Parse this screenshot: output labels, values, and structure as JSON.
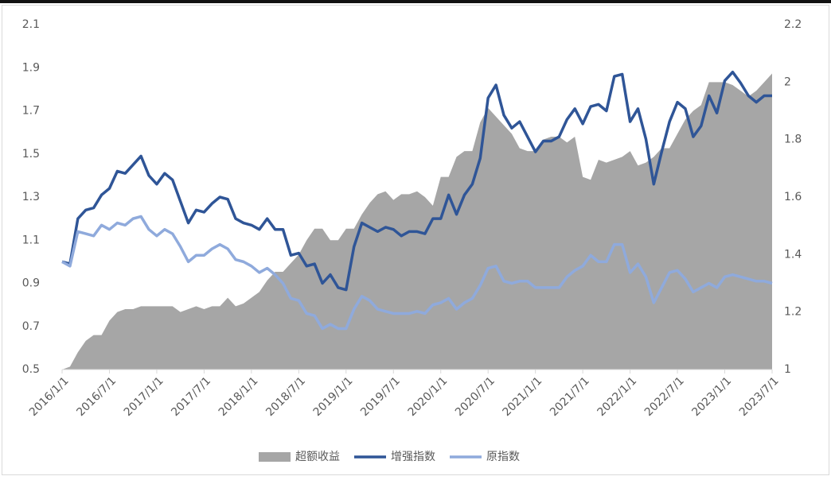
{
  "chart_data": {
    "type": "line",
    "categories": [
      "2016/1/1",
      null,
      null,
      null,
      null,
      null,
      "2016/7/1",
      null,
      null,
      null,
      null,
      null,
      "2017/1/1",
      null,
      null,
      null,
      null,
      null,
      "2017/7/1",
      null,
      null,
      null,
      null,
      null,
      "2018/1/1",
      null,
      null,
      null,
      null,
      null,
      "2018/7/1",
      null,
      null,
      null,
      null,
      null,
      "2019/1/1",
      null,
      null,
      null,
      null,
      null,
      "2019/7/1",
      null,
      null,
      null,
      null,
      null,
      "2020/1/1",
      null,
      null,
      null,
      null,
      null,
      "2020/7/1",
      null,
      null,
      null,
      null,
      null,
      "2021/1/1",
      null,
      null,
      null,
      null,
      null,
      "2021/7/1",
      null,
      null,
      null,
      null,
      null,
      "2022/1/1",
      null,
      null,
      null,
      null,
      null,
      "2022/7/1",
      null,
      null,
      null,
      null,
      null,
      "2023/1/1",
      null,
      null,
      null,
      null,
      null,
      "2023/7/1"
    ],
    "series": [
      {
        "name": "超额收益",
        "type": "area",
        "axis": "y2",
        "color": "#a6a6a6",
        "values": [
          1.0,
          1.01,
          1.06,
          1.1,
          1.12,
          1.12,
          1.17,
          1.2,
          1.21,
          1.21,
          1.22,
          1.22,
          1.22,
          1.22,
          1.22,
          1.2,
          1.21,
          1.22,
          1.21,
          1.22,
          1.22,
          1.25,
          1.22,
          1.23,
          1.25,
          1.27,
          1.31,
          1.34,
          1.34,
          1.37,
          1.4,
          1.45,
          1.49,
          1.49,
          1.45,
          1.45,
          1.49,
          1.49,
          1.54,
          1.58,
          1.61,
          1.62,
          1.59,
          1.61,
          1.61,
          1.62,
          1.6,
          1.57,
          1.67,
          1.67,
          1.74,
          1.76,
          1.76,
          1.86,
          1.91,
          1.88,
          1.85,
          1.82,
          1.77,
          1.76,
          1.76,
          1.8,
          1.81,
          1.81,
          1.79,
          1.81,
          1.67,
          1.66,
          1.73,
          1.72,
          1.73,
          1.74,
          1.76,
          1.71,
          1.72,
          1.74,
          1.77,
          1.77,
          1.82,
          1.87,
          1.9,
          1.92,
          2.0,
          2.0,
          2.0,
          1.99,
          1.97,
          1.95,
          1.97,
          2.0,
          2.03
        ]
      },
      {
        "name": "增强指数",
        "type": "line",
        "color": "#2f5597",
        "values": [
          1.0,
          0.99,
          1.2,
          1.24,
          1.25,
          1.31,
          1.34,
          1.42,
          1.41,
          1.45,
          1.49,
          1.4,
          1.36,
          1.41,
          1.38,
          1.28,
          1.18,
          1.24,
          1.23,
          1.27,
          1.3,
          1.29,
          1.2,
          1.18,
          1.17,
          1.15,
          1.2,
          1.15,
          1.15,
          1.03,
          1.04,
          0.98,
          0.99,
          0.9,
          0.94,
          0.88,
          0.87,
          1.07,
          1.18,
          1.16,
          1.14,
          1.16,
          1.15,
          1.12,
          1.14,
          1.14,
          1.13,
          1.2,
          1.2,
          1.31,
          1.22,
          1.31,
          1.36,
          1.48,
          1.76,
          1.82,
          1.68,
          1.62,
          1.65,
          1.58,
          1.51,
          1.56,
          1.56,
          1.58,
          1.66,
          1.71,
          1.64,
          1.72,
          1.73,
          1.7,
          1.86,
          1.87,
          1.65,
          1.71,
          1.57,
          1.36,
          1.51,
          1.65,
          1.74,
          1.71,
          1.58,
          1.63,
          1.77,
          1.69,
          1.84,
          1.88,
          1.83,
          1.77,
          1.74,
          1.77,
          1.77
        ]
      },
      {
        "name": "原指数",
        "type": "line",
        "color": "#8faadc",
        "values": [
          1.0,
          0.98,
          1.14,
          1.13,
          1.12,
          1.17,
          1.15,
          1.18,
          1.17,
          1.2,
          1.21,
          1.15,
          1.12,
          1.15,
          1.13,
          1.07,
          1.0,
          1.03,
          1.03,
          1.06,
          1.08,
          1.06,
          1.01,
          1.0,
          0.98,
          0.95,
          0.97,
          0.94,
          0.9,
          0.83,
          0.82,
          0.76,
          0.75,
          0.69,
          0.71,
          0.69,
          0.69,
          0.78,
          0.84,
          0.82,
          0.78,
          0.77,
          0.76,
          0.76,
          0.76,
          0.77,
          0.76,
          0.8,
          0.81,
          0.83,
          0.78,
          0.81,
          0.83,
          0.89,
          0.97,
          0.98,
          0.91,
          0.9,
          0.91,
          0.91,
          0.88,
          0.88,
          0.88,
          0.88,
          0.93,
          0.96,
          0.98,
          1.03,
          1.0,
          1.0,
          1.08,
          1.08,
          0.95,
          0.99,
          0.93,
          0.81,
          0.88,
          0.95,
          0.96,
          0.92,
          0.86,
          0.88,
          0.9,
          0.88,
          0.93,
          0.94,
          0.93,
          0.92,
          0.91,
          0.91,
          0.9
        ]
      }
    ],
    "ylim": [
      0.5,
      2.1
    ],
    "yticks": [
      0.5,
      0.7,
      0.9,
      1.1,
      1.3,
      1.5,
      1.7,
      1.9,
      2.1
    ],
    "y2lim": [
      1,
      2.2
    ],
    "y2ticks": [
      1,
      1.2,
      1.4,
      1.6,
      1.8,
      2,
      2.2
    ],
    "legend": "bottom"
  }
}
